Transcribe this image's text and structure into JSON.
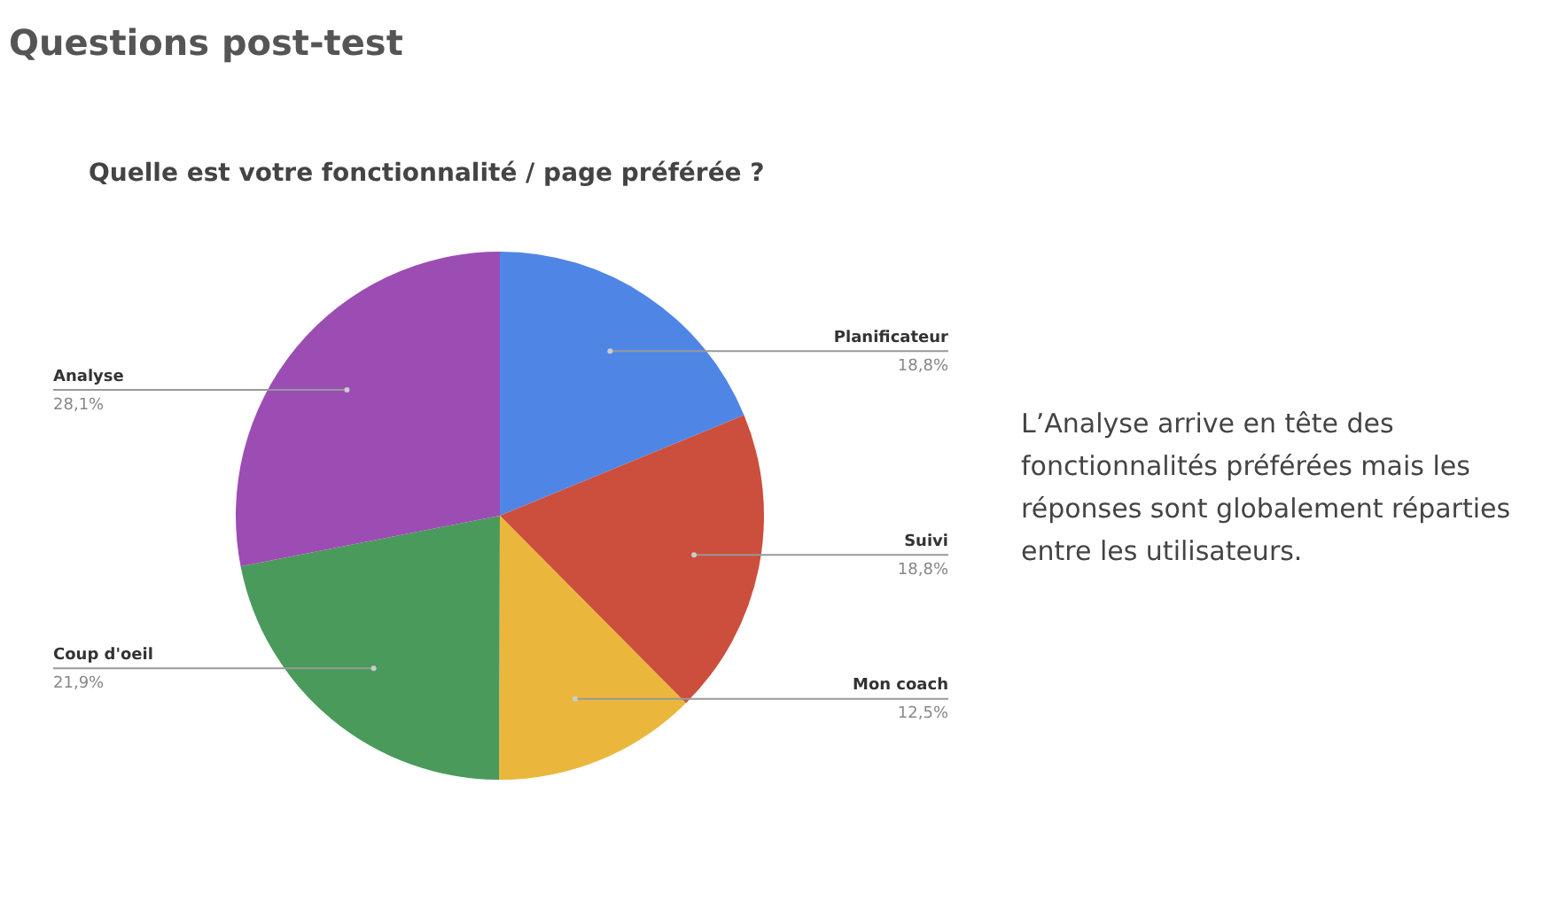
{
  "chart_data": {
    "type": "pie",
    "title": "Questions post-test",
    "subtitle": "Quelle est votre fonctionnalité / page préférée ?",
    "categories": [
      "Planificateur",
      "Suivi",
      "Mon coach",
      "Coup d'oeil",
      "Analyse"
    ],
    "values": [
      18.8,
      18.8,
      12.5,
      21.9,
      28.1
    ],
    "colors": [
      "#4f86e6",
      "#cc4e3c",
      "#eab73c",
      "#4a9a5c",
      "#9b4db3"
    ],
    "value_labels": [
      "18,8%",
      "18,8%",
      "12,5%",
      "21,9%",
      "28,1%"
    ],
    "legend": false,
    "annotations": [
      "L’Analyse arrive en tête des fonctionnalités préférées mais les réponses sont globalement réparties entre les utilisateurs."
    ]
  }
}
